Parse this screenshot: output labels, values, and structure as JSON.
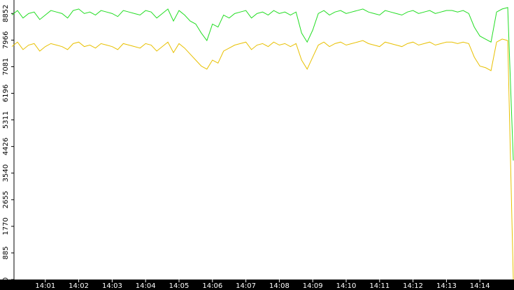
{
  "chart_data": {
    "type": "line",
    "categories": [
      null,
      null,
      null,
      null,
      null,
      null,
      "14:01",
      null,
      null,
      null,
      null,
      null,
      "14:02",
      null,
      null,
      null,
      null,
      null,
      "14:03",
      null,
      null,
      null,
      null,
      null,
      "14:04",
      null,
      null,
      null,
      null,
      null,
      "14:05",
      null,
      null,
      null,
      null,
      null,
      "14:06",
      null,
      null,
      null,
      null,
      null,
      "14:07",
      null,
      null,
      null,
      null,
      null,
      "14:08",
      null,
      null,
      null,
      null,
      null,
      "14:09",
      null,
      null,
      null,
      null,
      null,
      "14:10",
      null,
      null,
      null,
      null,
      null,
      "14:11",
      null,
      null,
      null,
      null,
      null,
      "14:12",
      null,
      null,
      null,
      null,
      null,
      "14:13",
      null,
      null,
      null,
      null,
      null,
      "14:14",
      null,
      null,
      null,
      null,
      null,
      null
    ],
    "series": [
      {
        "color": "#22dd22",
        "values": [
          8800,
          8950,
          8700,
          8850,
          8900,
          8650,
          8800,
          8950,
          8900,
          8850,
          8700,
          8950,
          9000,
          8850,
          8900,
          8800,
          8950,
          8900,
          8850,
          8750,
          8950,
          8900,
          8850,
          8800,
          8950,
          8900,
          8700,
          8850,
          9000,
          8600,
          8950,
          8800,
          8600,
          8500,
          8200,
          7950,
          8500,
          8400,
          8800,
          8700,
          8850,
          8900,
          8950,
          8700,
          8850,
          8900,
          8800,
          8950,
          8850,
          8900,
          8800,
          8900,
          8200,
          7900,
          8300,
          8850,
          8950,
          8800,
          8900,
          8950,
          8850,
          8900,
          8950,
          9000,
          8900,
          8850,
          8800,
          8950,
          8900,
          8850,
          8800,
          8900,
          8950,
          8850,
          8900,
          8950,
          8850,
          8900,
          8950,
          8950,
          8900,
          8950,
          8850,
          8400,
          8100,
          8000,
          7900,
          8900,
          9000,
          9050,
          3960
        ]
      },
      {
        "color": "#e8c000",
        "values": [
          7750,
          7900,
          7650,
          7800,
          7850,
          7600,
          7750,
          7850,
          7800,
          7750,
          7650,
          7850,
          7900,
          7750,
          7800,
          7700,
          7850,
          7800,
          7750,
          7650,
          7850,
          7800,
          7750,
          7700,
          7850,
          7800,
          7600,
          7750,
          7900,
          7550,
          7850,
          7700,
          7500,
          7300,
          7100,
          7000,
          7300,
          7200,
          7600,
          7700,
          7800,
          7850,
          7900,
          7650,
          7800,
          7850,
          7750,
          7900,
          7800,
          7850,
          7750,
          7850,
          7300,
          7000,
          7400,
          7800,
          7900,
          7750,
          7850,
          7900,
          7800,
          7850,
          7900,
          7950,
          7850,
          7800,
          7750,
          7900,
          7850,
          7800,
          7750,
          7850,
          7900,
          7800,
          7850,
          7900,
          7800,
          7850,
          7900,
          7900,
          7850,
          7900,
          7850,
          7400,
          7100,
          7050,
          6950,
          7900,
          8000,
          7950,
          0
        ]
      }
    ],
    "ylim": [
      0,
      9300
    ],
    "yticks": [
      0,
      885,
      1770,
      2655,
      3540,
      4426,
      5311,
      6196,
      7081,
      7966,
      8852
    ]
  }
}
